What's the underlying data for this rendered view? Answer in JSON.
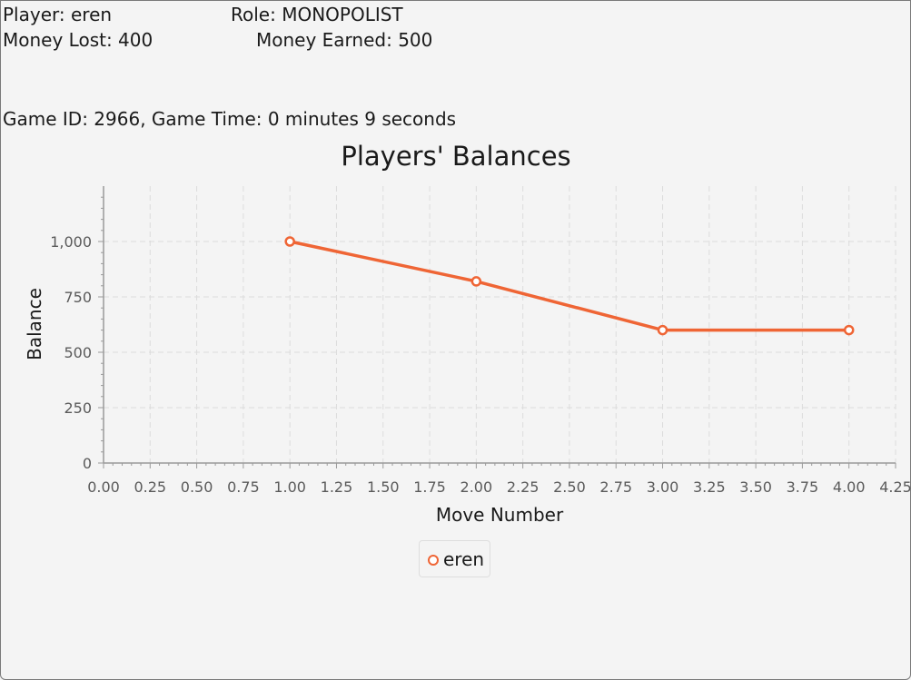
{
  "header": {
    "player": "Player: eren",
    "role": "Role: MONOPOLIST",
    "money_lost": "Money Lost: 400",
    "money_earned": "Money Earned: 500",
    "game_info": "Game ID: 2966, Game Time: 0 minutes 9 seconds"
  },
  "chart_data": {
    "type": "line",
    "title": "Players' Balances",
    "xlabel": "Move Number",
    "ylabel": "Balance",
    "xlim": [
      0,
      4.25
    ],
    "ylim": [
      0,
      1250
    ],
    "x_ticks": [
      "0.00",
      "0.25",
      "0.50",
      "0.75",
      "1.00",
      "1.25",
      "1.50",
      "1.75",
      "2.00",
      "2.25",
      "2.50",
      "2.75",
      "3.00",
      "3.25",
      "3.50",
      "3.75",
      "4.00",
      "4.25"
    ],
    "y_ticks": [
      "0",
      "250",
      "500",
      "750",
      "1,000"
    ],
    "grid": true,
    "legend_position": "bottom",
    "series": [
      {
        "name": "eren",
        "color": "#ef6535",
        "x": [
          1,
          2,
          3,
          4
        ],
        "y": [
          1000,
          820,
          600,
          600
        ]
      }
    ]
  }
}
